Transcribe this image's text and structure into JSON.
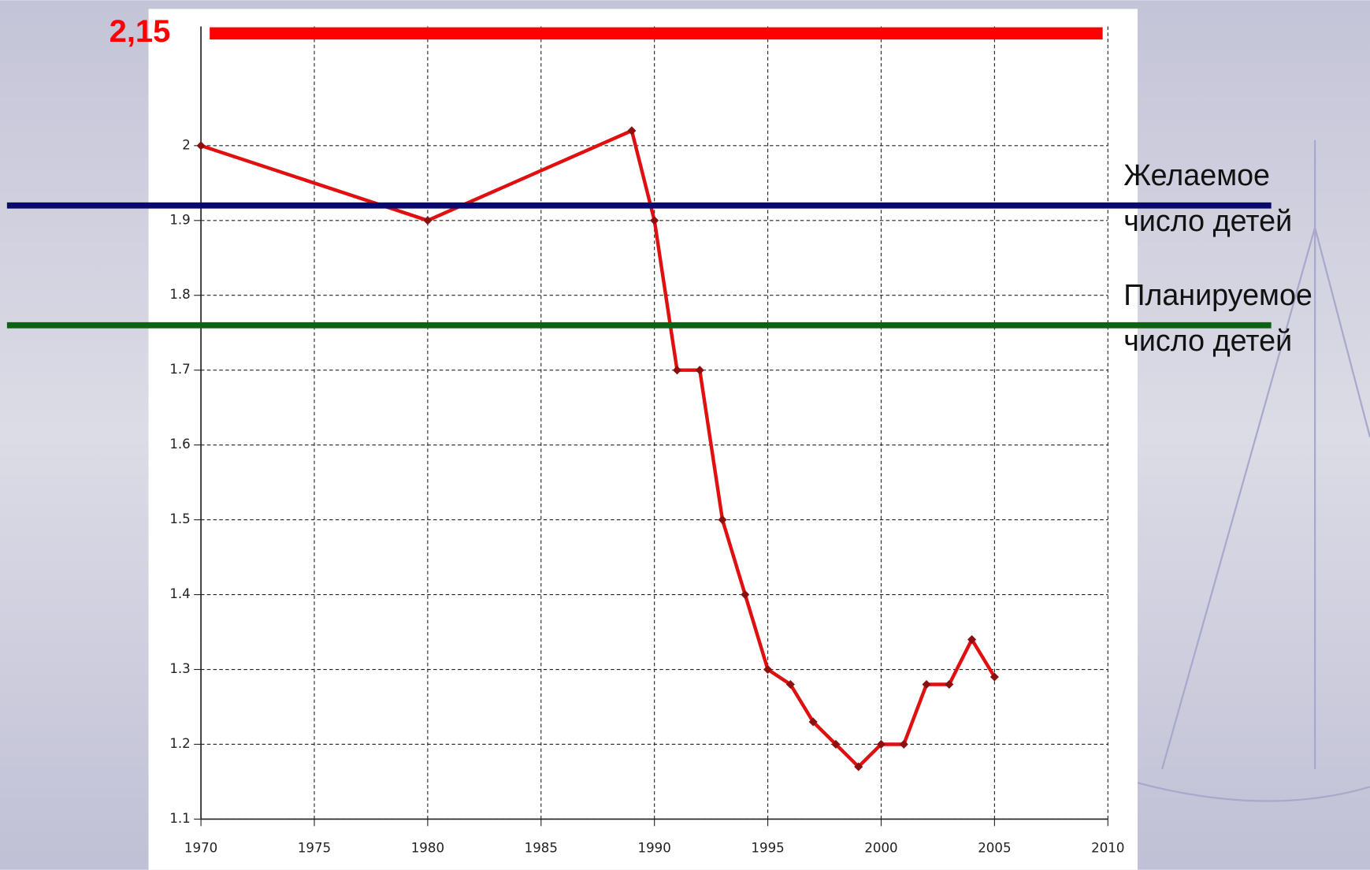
{
  "chart_data": {
    "type": "line",
    "x": [
      1970,
      1980,
      1989,
      1990,
      1991,
      1992,
      1993,
      1994,
      1995,
      1996,
      1997,
      1998,
      1999,
      2000,
      2001,
      2002,
      2003,
      2004,
      2005
    ],
    "series": [
      {
        "color": "#e01010",
        "values": [
          2.0,
          1.9,
          2.02,
          1.9,
          1.7,
          1.7,
          1.5,
          1.4,
          1.3,
          1.28,
          1.23,
          1.2,
          1.17,
          1.2,
          1.2,
          1.28,
          1.28,
          1.34,
          1.29
        ]
      }
    ],
    "xlim": [
      1970,
      2010
    ],
    "xticks": [
      1970,
      1975,
      1980,
      1985,
      1990,
      1995,
      2000,
      2005,
      2010
    ],
    "ylim": [
      1.1,
      2.15
    ],
    "yticks": [
      1.1,
      1.2,
      1.3,
      1.4,
      1.5,
      1.6,
      1.7,
      1.8,
      1.9,
      2
    ],
    "grid": true,
    "reference_lines": [
      {
        "value": 2.15,
        "label": "2,15",
        "color": "#ff0000"
      },
      {
        "value": 1.92,
        "label_lines": [
          "Желаемое",
          "число детей"
        ],
        "color": "#0a0a6e"
      },
      {
        "value": 1.76,
        "label_lines": [
          "Планируемое",
          "число детей"
        ],
        "color": "#0a6414"
      }
    ]
  }
}
